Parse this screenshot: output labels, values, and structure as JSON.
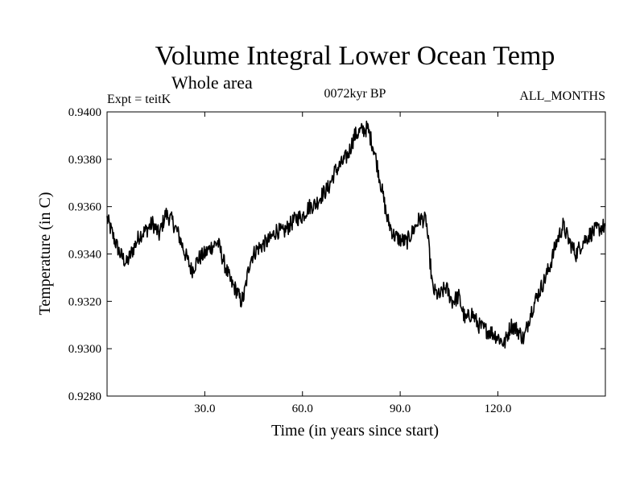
{
  "chart_data": {
    "type": "line",
    "title": "Volume Integral Lower Ocean Temp",
    "subtitle": "Whole area",
    "experiment_label": "Expt = teitK",
    "period_label": "0072kyr BP",
    "months_label": "ALL_MONTHS",
    "xlabel": "Time (in years since start)",
    "ylabel": "Temperature (in C)",
    "xlim": [
      0,
      153
    ],
    "ylim": [
      0.928,
      0.94
    ],
    "x_ticks": [
      30,
      60,
      90,
      120
    ],
    "x_tick_labels": [
      "30.0",
      "60.0",
      "90.0",
      "120.0"
    ],
    "y_ticks": [
      0.928,
      0.93,
      0.932,
      0.934,
      0.936,
      0.938,
      0.94
    ],
    "y_tick_labels": [
      "0.9280",
      "0.9300",
      "0.9320",
      "0.9340",
      "0.9360",
      "0.9380",
      "0.9400"
    ],
    "grid": false,
    "series": [
      {
        "name": "Volume Integral Lower Ocean Temp",
        "color": "#000000",
        "x": [
          0,
          2,
          4,
          6,
          8,
          10,
          12,
          14,
          16,
          18,
          20,
          22,
          24,
          26,
          28,
          30,
          32,
          34,
          36,
          38,
          40,
          41,
          42,
          44,
          46,
          48,
          50,
          52,
          54,
          56,
          58,
          60,
          62,
          64,
          66,
          68,
          70,
          72,
          74,
          76,
          78,
          80,
          82,
          84,
          86,
          88,
          90,
          92,
          94,
          96,
          98,
          100,
          102,
          104,
          106,
          108,
          110,
          112,
          114,
          116,
          118,
          120,
          122,
          124,
          126,
          128,
          130,
          132,
          134,
          136,
          138,
          140,
          142,
          144,
          146,
          148,
          150,
          153
        ],
        "values": [
          0.9355,
          0.9347,
          0.934,
          0.9336,
          0.9342,
          0.9348,
          0.935,
          0.9353,
          0.9348,
          0.9357,
          0.9354,
          0.9348,
          0.934,
          0.9333,
          0.9338,
          0.934,
          0.9343,
          0.9345,
          0.9336,
          0.9328,
          0.9324,
          0.932,
          0.9322,
          0.9338,
          0.9342,
          0.9344,
          0.9346,
          0.935,
          0.9349,
          0.9352,
          0.9355,
          0.9356,
          0.936,
          0.9361,
          0.9365,
          0.9368,
          0.9375,
          0.9378,
          0.9382,
          0.939,
          0.9392,
          0.9393,
          0.9384,
          0.937,
          0.9355,
          0.9348,
          0.9346,
          0.9345,
          0.935,
          0.9355,
          0.9354,
          0.9325,
          0.9322,
          0.9326,
          0.932,
          0.9322,
          0.9312,
          0.9315,
          0.931,
          0.9308,
          0.9307,
          0.9305,
          0.9302,
          0.931,
          0.9308,
          0.9304,
          0.9315,
          0.9322,
          0.9328,
          0.9335,
          0.9345,
          0.9352,
          0.9345,
          0.934,
          0.9345,
          0.9348,
          0.935,
          0.9352
        ]
      }
    ]
  }
}
